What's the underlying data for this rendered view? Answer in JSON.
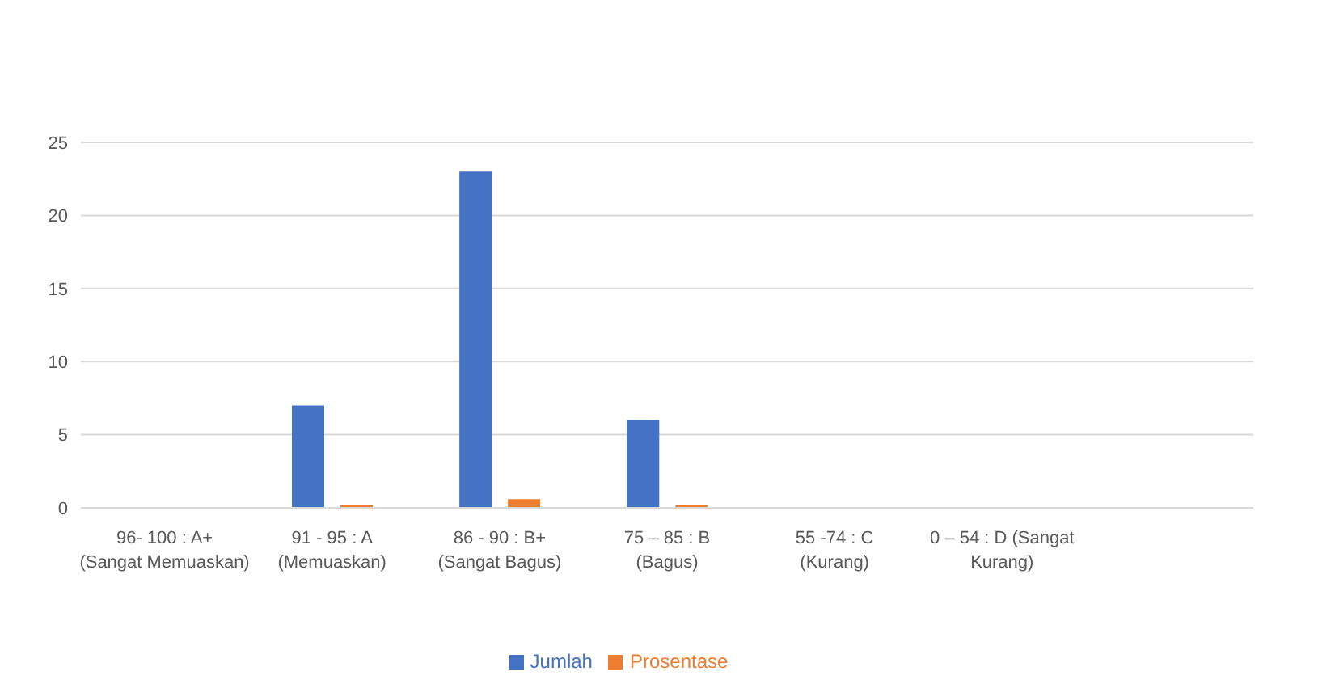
{
  "chart_data": {
    "type": "bar",
    "categories": [
      "96- 100 : A+ (Sangat Memuaskan)",
      "91 - 95 : A (Memuaskan)",
      "86 - 90 : B+ (Sangat Bagus)",
      "75 – 85 : B (Bagus)",
      "55 -74 : C (Kurang)",
      "0 – 54 : D (Sangat Kurang)",
      null
    ],
    "series": [
      {
        "name": "Jumlah",
        "color": "#4472c4",
        "values": [
          0,
          7,
          23,
          6,
          0,
          0,
          null
        ]
      },
      {
        "name": "Prosentase",
        "color": "#ed7d31",
        "values": [
          0,
          0.2,
          0.6,
          0.2,
          0,
          0,
          null
        ]
      }
    ],
    "ylim": [
      0,
      25
    ],
    "yticks": [
      0,
      5,
      10,
      15,
      20,
      25
    ],
    "grid": "y",
    "legend": "bottom"
  }
}
